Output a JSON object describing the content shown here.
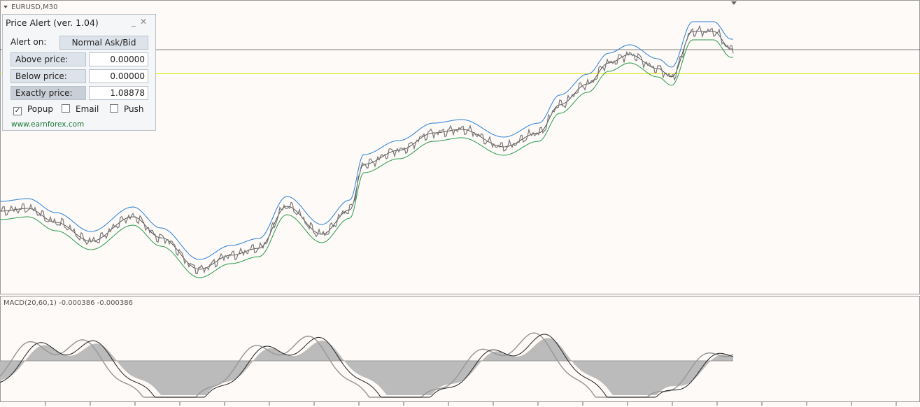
{
  "chart_label": "EURUSD,M30",
  "indicator_label": "MACD(20,60,1) -0.000386 -0.000386",
  "panel": {
    "title": "Price Alert (ver. 1.04)",
    "alert_on_label": "Alert on:",
    "mode_button": "Normal Ask/Bid",
    "rows": [
      {
        "label": "Above price:",
        "value": "0.00000"
      },
      {
        "label": "Below price:",
        "value": "0.00000"
      },
      {
        "label": "Exactly price:",
        "value": "1.08878"
      }
    ],
    "checkboxes": [
      {
        "label": "Popup",
        "checked": true
      },
      {
        "label": "Email",
        "checked": false
      },
      {
        "label": "Push",
        "checked": false
      }
    ],
    "link": "www.earnforex.com"
  }
}
